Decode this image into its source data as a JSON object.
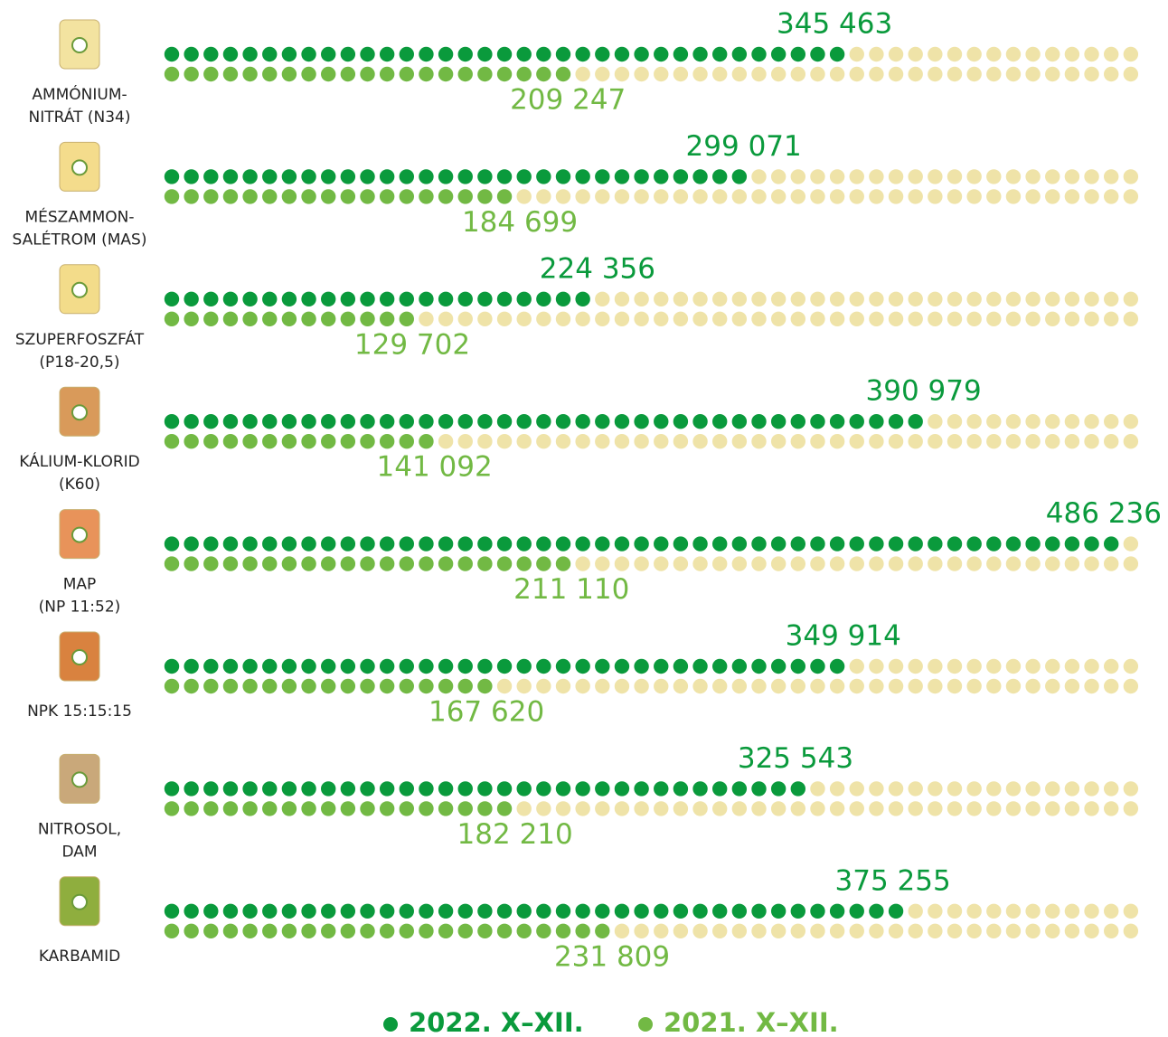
{
  "chart_data": {
    "type": "dot-bar",
    "categories": [
      [
        "AMMÓNIUM-",
        "NITRÁT (N34)"
      ],
      [
        "MÉSZAMMON-",
        "SALÉTROM (MAS)"
      ],
      [
        "SZUPERFOSZFÁT",
        "(P18-20,5)"
      ],
      [
        "KÁLIUM-KLORID",
        "(K60)"
      ],
      [
        "MAP",
        "(NP 11:52)"
      ],
      [
        "NPK 15:15:15"
      ],
      [
        "NITROSOL,",
        "DAM"
      ],
      [
        "KARBAMID"
      ]
    ],
    "series": [
      {
        "name": "2022. X–XII.",
        "color": "#0a9a3c",
        "values": [
          345463,
          299071,
          224356,
          390979,
          486236,
          349914,
          325543,
          375255
        ],
        "value_labels": [
          "345 463",
          "299 071",
          "224 356",
          "390 979",
          "486 236",
          "349 914",
          "325 543",
          "375 255"
        ]
      },
      {
        "name": "2021. X–XII.",
        "color": "#72b944",
        "values": [
          209247,
          184699,
          129702,
          141092,
          211110,
          167620,
          182210,
          231809
        ],
        "value_labels": [
          "209 247",
          "184 699",
          "129 702",
          "141 092",
          "211 110",
          "167 620",
          "182 210",
          "231 809"
        ]
      }
    ],
    "xlim": [
      0,
      500000
    ],
    "empty_color": "#efe3a8"
  }
}
